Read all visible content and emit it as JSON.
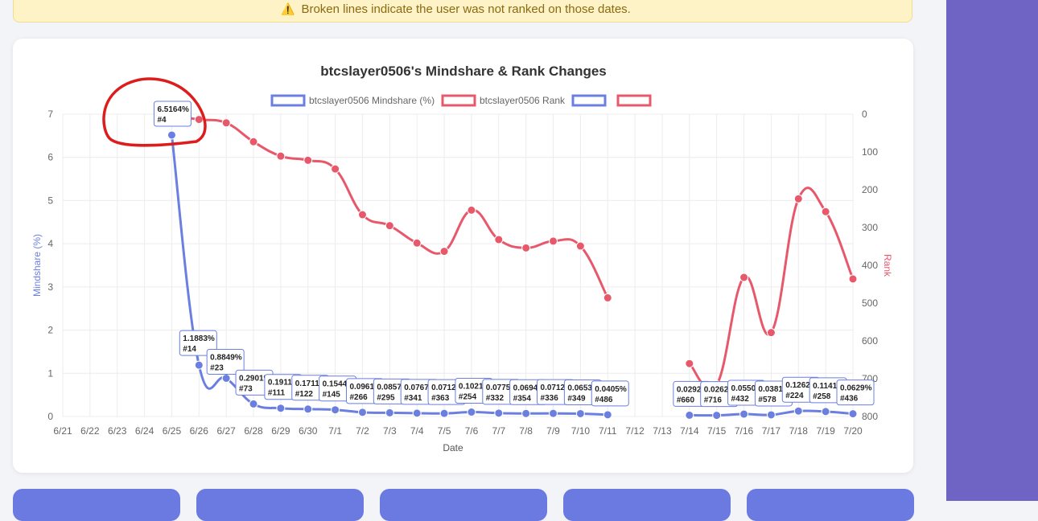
{
  "notice": {
    "icon": "warning-icon",
    "text": "Broken lines indicate the user was not ranked on those dates."
  },
  "chart_data": {
    "type": "line",
    "title": "btcslayer0506's Mindshare & Rank Changes",
    "xlabel": "Date",
    "ylabel_left": "Mindshare (%)",
    "ylabel_right": "Rank",
    "ylim_left": [
      0,
      7
    ],
    "ylim_right": [
      0,
      800
    ],
    "right_axis_inverted": true,
    "categories": [
      "6/21",
      "6/22",
      "6/23",
      "6/24",
      "6/25",
      "6/26",
      "6/27",
      "6/28",
      "6/29",
      "6/30",
      "7/1",
      "7/2",
      "7/3",
      "7/4",
      "7/5",
      "7/6",
      "7/7",
      "7/8",
      "7/9",
      "7/10",
      "7/11",
      "7/12",
      "7/13",
      "7/14",
      "7/15",
      "7/16",
      "7/17",
      "7/18",
      "7/19",
      "7/20"
    ],
    "yticks_left": [
      "0",
      "1",
      "2",
      "3",
      "4",
      "5",
      "6",
      "7"
    ],
    "yticks_right": [
      "0",
      "100",
      "200",
      "300",
      "400",
      "500",
      "600",
      "700",
      "800"
    ],
    "legend": [
      {
        "label": "btcslayer0506 Mindshare (%)",
        "color": "#6b7fe0"
      },
      {
        "label": "btcslayer0506 Rank",
        "color": "#e8586b"
      },
      {
        "label": "",
        "color": "#6b7fe0"
      },
      {
        "label": "",
        "color": "#e8586b"
      }
    ],
    "series": [
      {
        "name": "btcslayer0506 Mindshare (%)",
        "color": "#6b7fe0",
        "values": [
          null,
          null,
          null,
          null,
          6.5164,
          1.1883,
          0.8849,
          0.2901,
          0.1911,
          0.1711,
          0.1544,
          0.0961,
          0.0857,
          0.0767,
          0.0712,
          0.1021,
          0.0775,
          0.0694,
          0.0712,
          0.0653,
          0.0405,
          null,
          null,
          0.0292,
          0.0262,
          0.055,
          0.0381,
          0.1262,
          0.1141,
          0.0629
        ]
      },
      {
        "name": "btcslayer0506 Rank",
        "color": "#e8586b",
        "values": [
          null,
          null,
          null,
          null,
          4,
          14,
          23,
          73,
          111,
          122,
          145,
          266,
          295,
          341,
          363,
          254,
          332,
          354,
          336,
          349,
          486,
          null,
          null,
          660,
          716,
          432,
          578,
          224,
          258,
          436
        ]
      }
    ],
    "tooltips": [
      {
        "i": 4,
        "pct": "6.5164%",
        "rank": "#4"
      },
      {
        "i": 5,
        "pct": "1.1883%",
        "rank": "#14"
      },
      {
        "i": 6,
        "pct": "0.8849%",
        "rank": "#23"
      },
      {
        "i": 7,
        "pct": "0.2901%",
        "rank": "#73"
      },
      {
        "i": 8,
        "pct": "0.1911%",
        "rank": "#111"
      },
      {
        "i": 9,
        "pct": "0.1711%",
        "rank": "#122"
      },
      {
        "i": 10,
        "pct": "0.1544%",
        "rank": "#145"
      },
      {
        "i": 11,
        "pct": "0.0961%",
        "rank": "#266"
      },
      {
        "i": 12,
        "pct": "0.0857%",
        "rank": "#295"
      },
      {
        "i": 13,
        "pct": "0.0767%",
        "rank": "#341"
      },
      {
        "i": 14,
        "pct": "0.0712%",
        "rank": "#363"
      },
      {
        "i": 15,
        "pct": "0.1021%",
        "rank": "#254"
      },
      {
        "i": 16,
        "pct": "0.0775%",
        "rank": "#332"
      },
      {
        "i": 17,
        "pct": "0.0694%",
        "rank": "#354"
      },
      {
        "i": 18,
        "pct": "0.0712%",
        "rank": "#336"
      },
      {
        "i": 19,
        "pct": "0.0653%",
        "rank": "#349"
      },
      {
        "i": 20,
        "pct": "0.0405%",
        "rank": "#486"
      },
      {
        "i": 23,
        "pct": "0.0292%",
        "rank": "#660"
      },
      {
        "i": 24,
        "pct": "0.0262%",
        "rank": "#716"
      },
      {
        "i": 25,
        "pct": "0.0550%",
        "rank": "#432"
      },
      {
        "i": 26,
        "pct": "0.0381%",
        "rank": "#578"
      },
      {
        "i": 27,
        "pct": "0.1262%",
        "rank": "#224"
      },
      {
        "i": 28,
        "pct": "0.1141%",
        "rank": "#258"
      },
      {
        "i": 29,
        "pct": "0.0629%",
        "rank": "#436"
      }
    ],
    "grid": true,
    "legend_position": "top"
  },
  "colors": {
    "accent": "#6b7fe0",
    "rank": "#e8586b",
    "annotation": "#dd1c1c",
    "sidebar": "#6f63c4"
  }
}
